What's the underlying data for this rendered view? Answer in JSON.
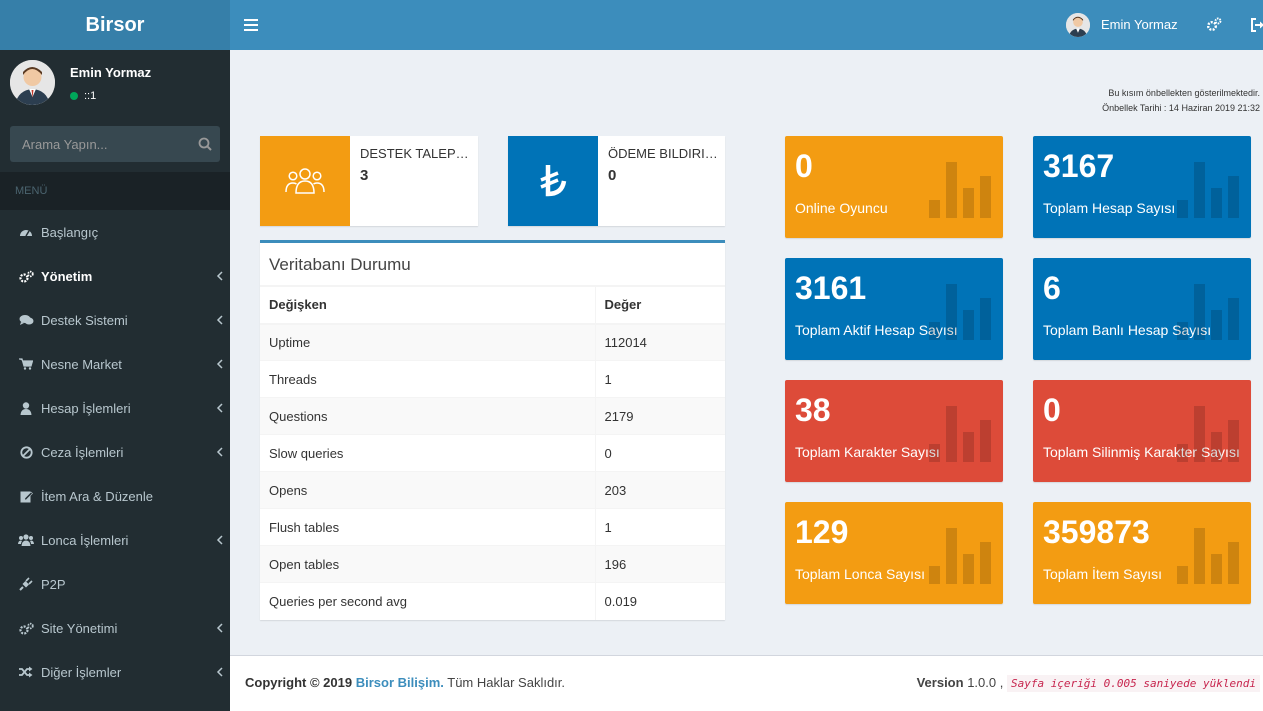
{
  "sidebar": {
    "logo": "Birsor",
    "user": {
      "name": "Emin Yormaz",
      "status": "::1"
    },
    "search_placeholder": "Arama Yapın...",
    "menu_header": "MENÜ",
    "items": [
      {
        "label": "Başlangıç",
        "icon": "dashboard-icon"
      },
      {
        "label": "Yönetim",
        "icon": "gears-icon"
      },
      {
        "label": "Destek Sistemi",
        "icon": "comments-icon"
      },
      {
        "label": "Nesne Market",
        "icon": "cart-icon"
      },
      {
        "label": "Hesap İşlemleri",
        "icon": "user-icon"
      },
      {
        "label": "Ceza İşlemleri",
        "icon": "ban-icon"
      },
      {
        "label": "İtem Ara & Düzenle",
        "icon": "edit-icon"
      },
      {
        "label": "Lonca İşlemleri",
        "icon": "users-icon"
      },
      {
        "label": "P2P",
        "icon": "plug-icon"
      },
      {
        "label": "Site Yönetimi",
        "icon": "gears-icon"
      },
      {
        "label": "Diğer İşlemler",
        "icon": "random-icon"
      }
    ]
  },
  "header": {
    "user_name": "Emin Yormaz"
  },
  "cache": {
    "line1": "Bu kısım önbellekten gösterilmektedir.",
    "line2": "Önbellek Tarihi : 14 Haziran 2019 21:32"
  },
  "info_boxes": [
    {
      "label": "DESTEK TALEPLERİ",
      "value": "3",
      "color": "#f39c12"
    },
    {
      "label": "ÖDEME BILDIRIMLERI",
      "value": "0",
      "color": "#0073b7"
    }
  ],
  "db": {
    "title": "Veritabanı Durumu",
    "headers": [
      "Değişken",
      "Değer"
    ],
    "rows": [
      [
        "Uptime",
        "112014"
      ],
      [
        "Threads",
        "1"
      ],
      [
        "Questions",
        "2179"
      ],
      [
        "Slow queries",
        "0"
      ],
      [
        "Opens",
        "203"
      ],
      [
        "Flush tables",
        "1"
      ],
      [
        "Open tables",
        "196"
      ],
      [
        "Queries per second avg",
        "0.019"
      ]
    ]
  },
  "stats": [
    {
      "value": "0",
      "label": "Online Oyuncu",
      "color": "yellow"
    },
    {
      "value": "3167",
      "label": "Toplam Hesap Sayısı",
      "color": "blue"
    },
    {
      "value": "3161",
      "label": "Toplam Aktif Hesap Sayısı",
      "color": "blue"
    },
    {
      "value": "6",
      "label": "Toplam Banlı Hesap Sayısı",
      "color": "blue"
    },
    {
      "value": "38",
      "label": "Toplam Karakter Sayısı",
      "color": "red"
    },
    {
      "value": "0",
      "label": "Toplam Silinmiş Karakter Sayısı",
      "color": "red"
    },
    {
      "value": "129",
      "label": "Toplam Lonca Sayısı",
      "color": "yellow"
    },
    {
      "value": "359873",
      "label": "Toplam İtem Sayısı",
      "color": "yellow"
    }
  ],
  "footer": {
    "copyright": "Copyright © 2019",
    "brand": "Birsor Bilişim.",
    "rights": "Tüm Haklar Saklıdır.",
    "version_label": "Version",
    "version": "1.0.0 ,",
    "load_text": "Sayfa içeriği 0.005 saniyede yüklendi"
  }
}
